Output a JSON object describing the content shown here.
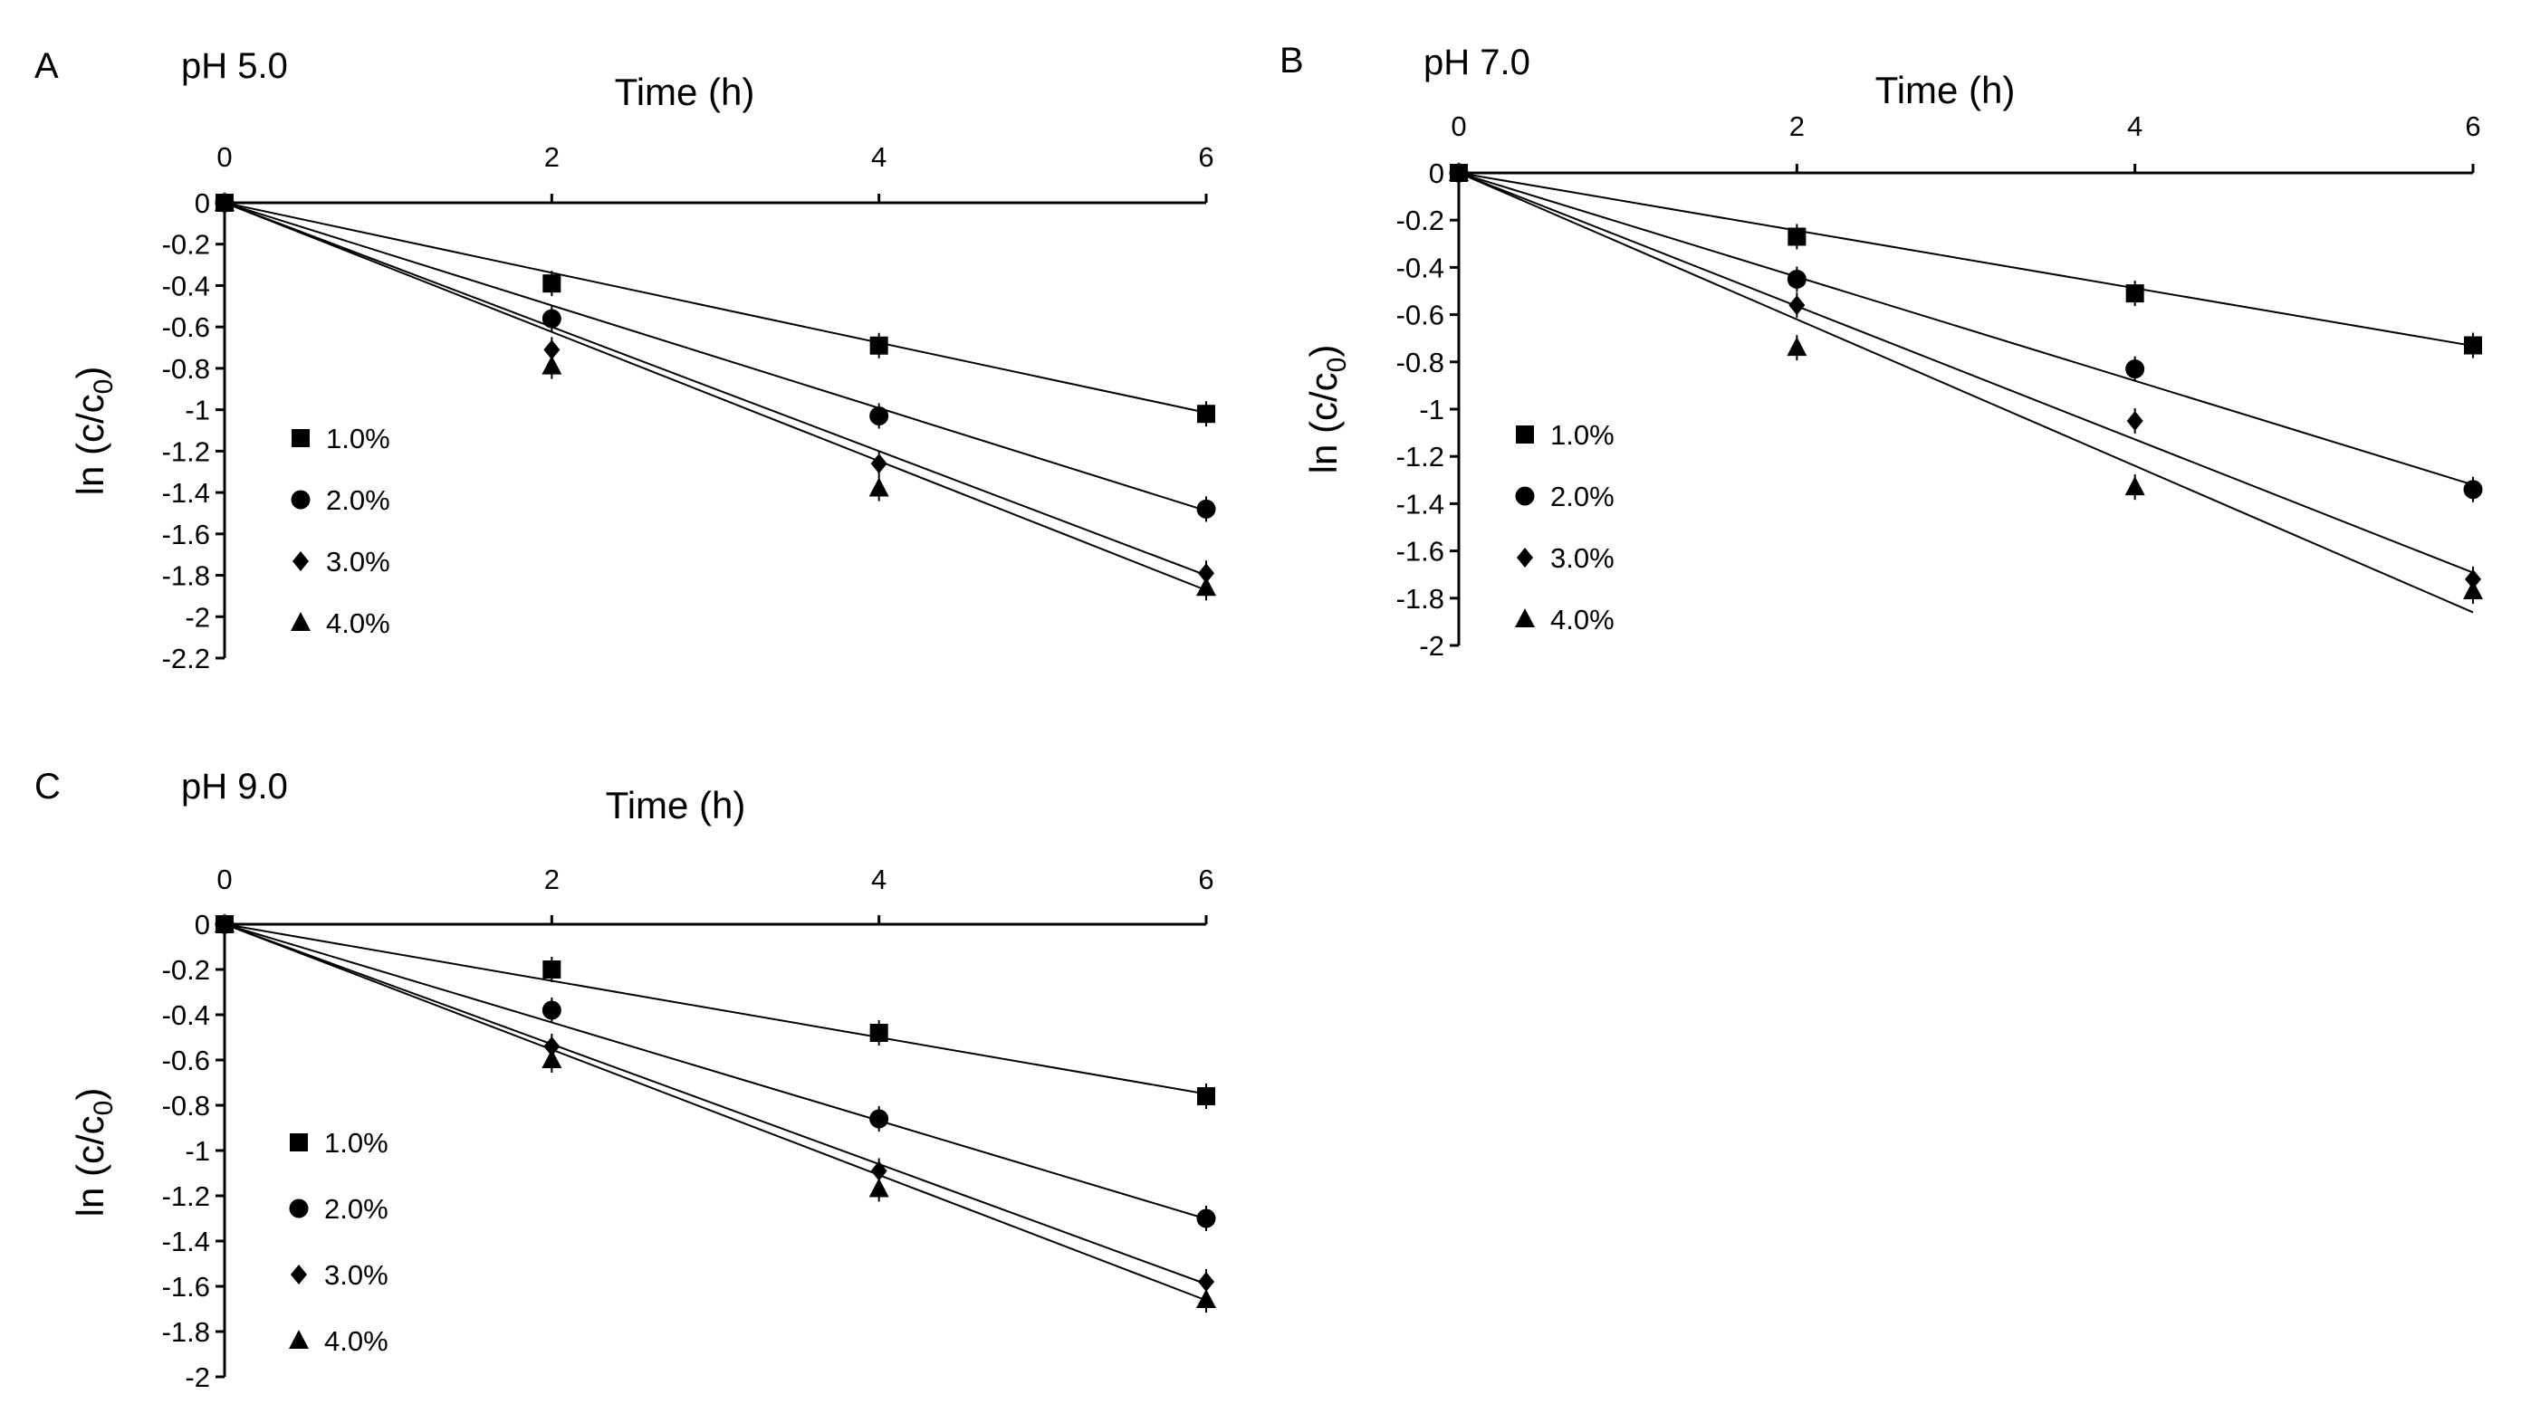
{
  "chart_data": [
    {
      "type": "scatter",
      "panel": "A",
      "title": "pH 5.0",
      "xlabel": "Time (h)",
      "ylabel": "ln (c/c0)",
      "x_ticks": [
        "0",
        "2",
        "4",
        "6"
      ],
      "y_ticks": [
        "0",
        "-0.2",
        "-0.4",
        "-0.6",
        "-0.8",
        "-1",
        "-1.2",
        "-1.4",
        "-1.6",
        "-1.8",
        "-2",
        "-2.2"
      ],
      "xlim": [
        0,
        6
      ],
      "ylim": [
        -2.2,
        0
      ],
      "x": [
        0,
        2,
        4,
        6
      ],
      "legend": [
        "1.0%",
        "2.0%",
        "3.0%",
        "4.0%"
      ],
      "series": [
        {
          "name": "1.0%",
          "marker": "square",
          "values": [
            0,
            -0.39,
            -0.69,
            -1.02
          ],
          "fit_slope": -0.169
        },
        {
          "name": "2.0%",
          "marker": "circle",
          "values": [
            0,
            -0.56,
            -1.03,
            -1.48
          ],
          "fit_slope": -0.248
        },
        {
          "name": "3.0%",
          "marker": "diamond",
          "values": [
            0,
            -0.71,
            -1.26,
            -1.79
          ],
          "fit_slope": -0.3
        },
        {
          "name": "4.0%",
          "marker": "triangle",
          "values": [
            0,
            -0.79,
            -1.38,
            -1.86
          ],
          "fit_slope": -0.312
        }
      ]
    },
    {
      "type": "scatter",
      "panel": "B",
      "title": "pH 7.0",
      "xlabel": "Time (h)",
      "ylabel": "ln (c/c0)",
      "x_ticks": [
        "0",
        "2",
        "4",
        "6"
      ],
      "y_ticks": [
        "0",
        "-0.2",
        "-0.4",
        "-0.6",
        "-0.8",
        "-1",
        "-1.2",
        "-1.4",
        "-1.6",
        "-1.8",
        "-2"
      ],
      "xlim": [
        0,
        6
      ],
      "ylim": [
        -2,
        0
      ],
      "x": [
        0,
        2,
        4,
        6
      ],
      "legend": [
        "1.0%",
        "2.0%",
        "3.0%",
        "4.0%"
      ],
      "series": [
        {
          "name": "1.0%",
          "marker": "square",
          "values": [
            0,
            -0.27,
            -0.51,
            -0.73
          ],
          "fit_slope": -0.122
        },
        {
          "name": "2.0%",
          "marker": "circle",
          "values": [
            0,
            -0.45,
            -0.83,
            -1.34
          ],
          "fit_slope": -0.22
        },
        {
          "name": "3.0%",
          "marker": "diamond",
          "values": [
            0,
            -0.56,
            -1.05,
            -1.72
          ],
          "fit_slope": -0.282
        },
        {
          "name": "4.0%",
          "marker": "triangle",
          "values": [
            0,
            -0.74,
            -1.33,
            -1.77
          ],
          "fit_slope": -0.31
        }
      ]
    },
    {
      "type": "scatter",
      "panel": "C",
      "title": "pH 9.0",
      "xlabel": "Time (h)",
      "ylabel": "ln (c/c0)",
      "x_ticks": [
        "0",
        "2",
        "4",
        "6"
      ],
      "y_ticks": [
        "0",
        "-0.2",
        "-0.4",
        "-0.6",
        "-0.8",
        "-1",
        "-1.2",
        "-1.4",
        "-1.6",
        "-1.8",
        "-2"
      ],
      "xlim": [
        0,
        6
      ],
      "ylim": [
        -2,
        0
      ],
      "x": [
        0,
        2,
        4,
        6
      ],
      "legend": [
        "1.0%",
        "2.0%",
        "3.0%",
        "4.0%"
      ],
      "series": [
        {
          "name": "1.0%",
          "marker": "square",
          "values": [
            0,
            -0.2,
            -0.48,
            -0.76
          ],
          "fit_slope": -0.125
        },
        {
          "name": "2.0%",
          "marker": "circle",
          "values": [
            0,
            -0.38,
            -0.86,
            -1.3
          ],
          "fit_slope": -0.217
        },
        {
          "name": "3.0%",
          "marker": "diamond",
          "values": [
            0,
            -0.54,
            -1.09,
            -1.58
          ],
          "fit_slope": -0.265
        },
        {
          "name": "4.0%",
          "marker": "triangle",
          "values": [
            0,
            -0.6,
            -1.17,
            -1.66
          ],
          "fit_slope": -0.277
        }
      ]
    }
  ]
}
